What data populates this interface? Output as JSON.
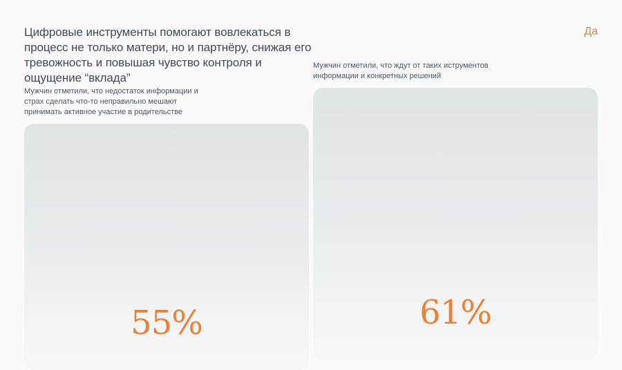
{
  "heading": "Цифровые инструменты помогают вовлекаться в процесс не только матери, но и партнёру, снижая его тревожность и повышая чувство контроля и ощущение “вклада”",
  "answer_tag": "Да",
  "accent_color": "#e8813a",
  "chart_data": {
    "type": "bar",
    "categories": [
      "Мужчин отметили, что недостаток информации и страх сделать что-то неправильно мешают принимать активное участие в родительстве",
      "Мужчин отметили, что ждут от таких иструментов информации и конкретных решений"
    ],
    "values": [
      55,
      61
    ],
    "value_labels": [
      "55%",
      "61%"
    ],
    "unit": "%",
    "ylim": [
      0,
      100
    ]
  }
}
